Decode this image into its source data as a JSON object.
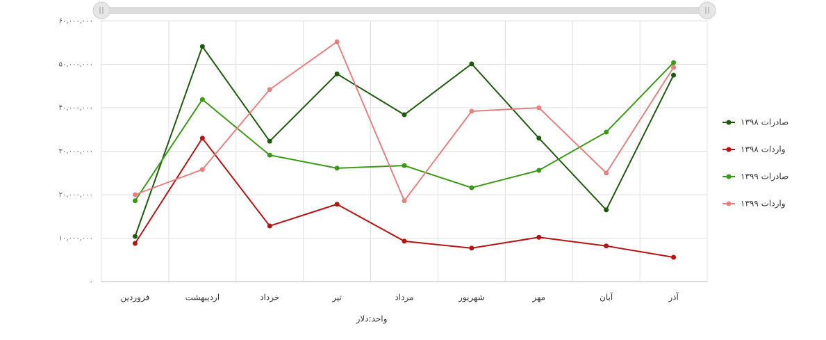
{
  "chart_data": {
    "type": "line",
    "x_label": "واحد:دلار",
    "categories": [
      "فروردین",
      "اردیبهشت",
      "خرداد",
      "تیر",
      "مرداد",
      "شهریور",
      "مهر",
      "آبان",
      "آذر"
    ],
    "series": [
      {
        "name": "صادرات ۱۳۹۸",
        "color": "#1e5a0c",
        "values": [
          10400000,
          54100000,
          32300000,
          47800000,
          38400000,
          50100000,
          33000000,
          16500000,
          47500000
        ]
      },
      {
        "name": "واردات ۱۳۹۸",
        "color": "#b51414",
        "values": [
          8800000,
          33000000,
          12800000,
          17800000,
          9300000,
          7700000,
          10200000,
          8200000,
          5600000
        ]
      },
      {
        "name": "صادرات ۱۳۹۹",
        "color": "#3a9a16",
        "values": [
          18600000,
          41900000,
          29100000,
          26100000,
          26700000,
          21600000,
          25600000,
          34400000,
          50400000
        ]
      },
      {
        "name": "واردات ۱۳۹۹",
        "color": "#e88080",
        "values": [
          20000000,
          25800000,
          44200000,
          55200000,
          18600000,
          39200000,
          40000000,
          25000000,
          49300000
        ]
      }
    ],
    "ylim": [
      0,
      60000000
    ],
    "yticks": [
      {
        "value": 0,
        "label": "۰"
      },
      {
        "value": 10000000,
        "label": "۱۰,۰۰۰,۰۰۰"
      },
      {
        "value": 20000000,
        "label": "۲۰,۰۰۰,۰۰۰"
      },
      {
        "value": 30000000,
        "label": "۳۰,۰۰۰,۰۰۰"
      },
      {
        "value": 40000000,
        "label": "۴۰,۰۰۰,۰۰۰"
      },
      {
        "value": 50000000,
        "label": "۵۰,۰۰۰,۰۰۰"
      },
      {
        "value": 60000000,
        "label": "۶۰,۰۰۰,۰۰۰"
      }
    ],
    "grid": true,
    "legend": "right"
  }
}
